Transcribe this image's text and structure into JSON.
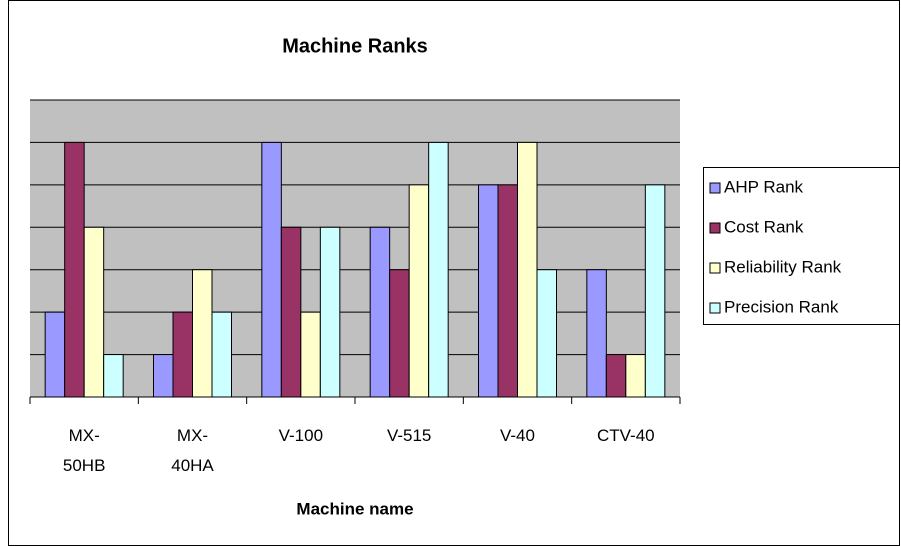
{
  "chart_data": {
    "type": "bar",
    "title": "Machine Ranks",
    "x_label": "Machine name",
    "categories": [
      "MX-50HB",
      "MX-40HA",
      "V-100",
      "V-515",
      "V-40",
      "CTV-40"
    ],
    "series": [
      {
        "name": "AHP Rank",
        "color": "#9999ff",
        "values": [
          2,
          1,
          6,
          4,
          5,
          3
        ]
      },
      {
        "name": "Cost Rank",
        "color": "#993366",
        "values": [
          6,
          2,
          4,
          3,
          5,
          1
        ]
      },
      {
        "name": "Reliability Rank",
        "color": "#ffffcc",
        "values": [
          4,
          3,
          2,
          5,
          6,
          1
        ]
      },
      {
        "name": "Precision Rank",
        "color": "#ccffff",
        "values": [
          1,
          2,
          4,
          6,
          3,
          5
        ]
      }
    ],
    "ylim": [
      0,
      7
    ],
    "yticks": [
      0,
      1,
      2,
      3,
      4,
      5,
      6,
      7
    ],
    "grid": true,
    "legend": "right"
  }
}
